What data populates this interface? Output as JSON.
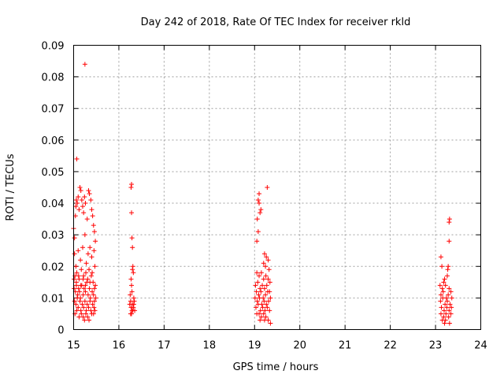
{
  "chart_data": {
    "type": "scatter",
    "title": "Day 242 of 2018, Rate Of TEC Index for receiver rkld",
    "xlabel": "GPS time / hours",
    "ylabel": "ROTI / TECUs",
    "xlim": [
      15,
      24
    ],
    "ylim": [
      0,
      0.09
    ],
    "x_ticks": [
      15,
      16,
      17,
      18,
      19,
      20,
      21,
      22,
      23,
      24
    ],
    "x_tick_labels": [
      "15",
      "16",
      "17",
      "18",
      "19",
      "20",
      "21",
      "22",
      "23",
      "24"
    ],
    "y_ticks": [
      0,
      0.01,
      0.02,
      0.03,
      0.04,
      0.05,
      0.06,
      0.07,
      0.08,
      0.09
    ],
    "y_tick_labels": [
      "0",
      "0.01",
      "0.02",
      "0.03",
      "0.04",
      "0.05",
      "0.06",
      "0.07",
      "0.08",
      "0.09"
    ],
    "grid": true,
    "marker": "+",
    "marker_color": "#ff0000",
    "series": [
      {
        "name": "ROTI",
        "points": [
          [
            15.25,
            0.084
          ],
          [
            15.07,
            0.054
          ],
          [
            15.0,
            0.032
          ],
          [
            15.02,
            0.029
          ],
          [
            15.04,
            0.036
          ],
          [
            15.05,
            0.039
          ],
          [
            15.06,
            0.041
          ],
          [
            15.08,
            0.04
          ],
          [
            15.1,
            0.042
          ],
          [
            15.12,
            0.038
          ],
          [
            15.14,
            0.045
          ],
          [
            15.16,
            0.044
          ],
          [
            15.18,
            0.041
          ],
          [
            15.2,
            0.039
          ],
          [
            15.22,
            0.037
          ],
          [
            15.24,
            0.042
          ],
          [
            15.26,
            0.04
          ],
          [
            15.3,
            0.035
          ],
          [
            15.33,
            0.044
          ],
          [
            15.35,
            0.043
          ],
          [
            15.38,
            0.041
          ],
          [
            15.4,
            0.038
          ],
          [
            15.42,
            0.036
          ],
          [
            15.44,
            0.033
          ],
          [
            15.46,
            0.031
          ],
          [
            15.48,
            0.028
          ],
          [
            15.02,
            0.024
          ],
          [
            15.05,
            0.02
          ],
          [
            15.1,
            0.025
          ],
          [
            15.15,
            0.022
          ],
          [
            15.2,
            0.026
          ],
          [
            15.25,
            0.03
          ],
          [
            15.28,
            0.021
          ],
          [
            15.32,
            0.024
          ],
          [
            15.36,
            0.026
          ],
          [
            15.4,
            0.023
          ],
          [
            15.45,
            0.025
          ],
          [
            15.47,
            0.02
          ],
          [
            15.03,
            0.017
          ],
          [
            15.07,
            0.018
          ],
          [
            15.12,
            0.016
          ],
          [
            15.17,
            0.019
          ],
          [
            15.22,
            0.017
          ],
          [
            15.27,
            0.018
          ],
          [
            15.31,
            0.016
          ],
          [
            15.34,
            0.019
          ],
          [
            15.39,
            0.017
          ],
          [
            15.43,
            0.015
          ],
          [
            15.48,
            0.014
          ],
          [
            15.01,
            0.013
          ],
          [
            15.04,
            0.012
          ],
          [
            15.06,
            0.014
          ],
          [
            15.09,
            0.011
          ],
          [
            15.11,
            0.013
          ],
          [
            15.13,
            0.012
          ],
          [
            15.15,
            0.01
          ],
          [
            15.18,
            0.014
          ],
          [
            15.21,
            0.011
          ],
          [
            15.23,
            0.013
          ],
          [
            15.26,
            0.012
          ],
          [
            15.29,
            0.015
          ],
          [
            15.32,
            0.011
          ],
          [
            15.35,
            0.013
          ],
          [
            15.37,
            0.01
          ],
          [
            15.41,
            0.012
          ],
          [
            15.44,
            0.011
          ],
          [
            15.46,
            0.009
          ],
          [
            15.49,
            0.01
          ],
          [
            15.02,
            0.009
          ],
          [
            15.05,
            0.008
          ],
          [
            15.08,
            0.01
          ],
          [
            15.1,
            0.007
          ],
          [
            15.14,
            0.009
          ],
          [
            15.16,
            0.006
          ],
          [
            15.19,
            0.008
          ],
          [
            15.22,
            0.007
          ],
          [
            15.25,
            0.009
          ],
          [
            15.28,
            0.006
          ],
          [
            15.3,
            0.008
          ],
          [
            15.33,
            0.007
          ],
          [
            15.36,
            0.009
          ],
          [
            15.38,
            0.006
          ],
          [
            15.42,
            0.008
          ],
          [
            15.45,
            0.007
          ],
          [
            15.47,
            0.006
          ],
          [
            15.03,
            0.005
          ],
          [
            15.07,
            0.006
          ],
          [
            15.12,
            0.004
          ],
          [
            15.17,
            0.005
          ],
          [
            15.21,
            0.004
          ],
          [
            15.24,
            0.003
          ],
          [
            15.27,
            0.005
          ],
          [
            15.31,
            0.004
          ],
          [
            15.34,
            0.003
          ],
          [
            15.4,
            0.005
          ],
          [
            15.44,
            0.005
          ],
          [
            15.01,
            0.016
          ],
          [
            15.06,
            0.015
          ],
          [
            15.11,
            0.017
          ],
          [
            15.16,
            0.014
          ],
          [
            15.21,
            0.016
          ],
          [
            15.26,
            0.014
          ],
          [
            15.36,
            0.015
          ],
          [
            15.41,
            0.018
          ],
          [
            15.46,
            0.013
          ],
          [
            16.28,
            0.046
          ],
          [
            16.27,
            0.045
          ],
          [
            16.28,
            0.037
          ],
          [
            16.29,
            0.029
          ],
          [
            16.3,
            0.026
          ],
          [
            16.31,
            0.02
          ],
          [
            16.32,
            0.018
          ],
          [
            16.3,
            0.019
          ],
          [
            16.27,
            0.016
          ],
          [
            16.28,
            0.014
          ],
          [
            16.25,
            0.011
          ],
          [
            16.29,
            0.012
          ],
          [
            16.33,
            0.01
          ],
          [
            16.26,
            0.009
          ],
          [
            16.3,
            0.008
          ],
          [
            16.34,
            0.009
          ],
          [
            16.27,
            0.007
          ],
          [
            16.31,
            0.006
          ],
          [
            16.24,
            0.008
          ],
          [
            16.28,
            0.005
          ],
          [
            16.32,
            0.007
          ],
          [
            16.29,
            0.006
          ],
          [
            16.35,
            0.006
          ],
          [
            16.26,
            0.005
          ],
          [
            16.33,
            0.008
          ],
          [
            19.28,
            0.045
          ],
          [
            19.1,
            0.043
          ],
          [
            19.08,
            0.041
          ],
          [
            19.1,
            0.04
          ],
          [
            19.12,
            0.037
          ],
          [
            19.14,
            0.038
          ],
          [
            19.06,
            0.035
          ],
          [
            19.08,
            0.031
          ],
          [
            19.05,
            0.028
          ],
          [
            19.22,
            0.024
          ],
          [
            19.26,
            0.023
          ],
          [
            19.3,
            0.022
          ],
          [
            19.2,
            0.021
          ],
          [
            19.24,
            0.02
          ],
          [
            19.32,
            0.019
          ],
          [
            19.05,
            0.018
          ],
          [
            19.1,
            0.017
          ],
          [
            19.15,
            0.018
          ],
          [
            19.2,
            0.016
          ],
          [
            19.25,
            0.017
          ],
          [
            19.3,
            0.016
          ],
          [
            19.34,
            0.015
          ],
          [
            19.02,
            0.014
          ],
          [
            19.07,
            0.015
          ],
          [
            19.12,
            0.013
          ],
          [
            19.17,
            0.014
          ],
          [
            19.22,
            0.013
          ],
          [
            19.27,
            0.014
          ],
          [
            19.33,
            0.012
          ],
          [
            19.04,
            0.012
          ],
          [
            19.09,
            0.011
          ],
          [
            19.14,
            0.012
          ],
          [
            19.19,
            0.01
          ],
          [
            19.24,
            0.011
          ],
          [
            19.29,
            0.012
          ],
          [
            19.35,
            0.01
          ],
          [
            19.01,
            0.01
          ],
          [
            19.06,
            0.009
          ],
          [
            19.11,
            0.01
          ],
          [
            19.16,
            0.008
          ],
          [
            19.21,
            0.009
          ],
          [
            19.26,
            0.008
          ],
          [
            19.31,
            0.009
          ],
          [
            19.03,
            0.007
          ],
          [
            19.08,
            0.008
          ],
          [
            19.13,
            0.006
          ],
          [
            19.18,
            0.007
          ],
          [
            19.23,
            0.006
          ],
          [
            19.28,
            0.007
          ],
          [
            19.33,
            0.006
          ],
          [
            19.05,
            0.005
          ],
          [
            19.1,
            0.005
          ],
          [
            19.15,
            0.004
          ],
          [
            19.2,
            0.005
          ],
          [
            19.25,
            0.004
          ],
          [
            19.3,
            0.003
          ],
          [
            19.35,
            0.002
          ],
          [
            19.12,
            0.003
          ],
          [
            19.22,
            0.003
          ],
          [
            23.31,
            0.035
          ],
          [
            23.3,
            0.034
          ],
          [
            23.3,
            0.028
          ],
          [
            23.12,
            0.023
          ],
          [
            23.28,
            0.02
          ],
          [
            23.27,
            0.019
          ],
          [
            23.14,
            0.02
          ],
          [
            23.2,
            0.016
          ],
          [
            23.18,
            0.015
          ],
          [
            23.26,
            0.017
          ],
          [
            23.1,
            0.014
          ],
          [
            23.15,
            0.013
          ],
          [
            23.22,
            0.014
          ],
          [
            23.3,
            0.013
          ],
          [
            23.34,
            0.012
          ],
          [
            23.12,
            0.011
          ],
          [
            23.17,
            0.012
          ],
          [
            23.24,
            0.01
          ],
          [
            23.28,
            0.011
          ],
          [
            23.36,
            0.01
          ],
          [
            23.11,
            0.009
          ],
          [
            23.16,
            0.01
          ],
          [
            23.21,
            0.008
          ],
          [
            23.26,
            0.009
          ],
          [
            23.32,
            0.008
          ],
          [
            23.13,
            0.007
          ],
          [
            23.19,
            0.006
          ],
          [
            23.25,
            0.007
          ],
          [
            23.3,
            0.006
          ],
          [
            23.35,
            0.007
          ],
          [
            23.12,
            0.005
          ],
          [
            23.18,
            0.004
          ],
          [
            23.23,
            0.005
          ],
          [
            23.29,
            0.004
          ],
          [
            23.34,
            0.005
          ],
          [
            23.15,
            0.003
          ],
          [
            23.22,
            0.003
          ],
          [
            23.31,
            0.002
          ],
          [
            23.2,
            0.002
          ]
        ]
      }
    ]
  }
}
